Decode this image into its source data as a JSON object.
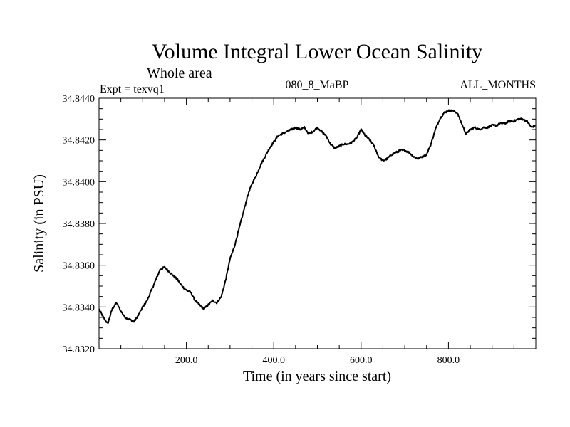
{
  "chart_data": {
    "type": "line",
    "title": "Volume Integral Lower Ocean Salinity",
    "subtitle": "Whole area",
    "header_left": "Expt = texvq1",
    "header_center": "080_8_MaBP",
    "header_right": "ALL_MONTHS",
    "xlabel": "Time (in years since start)",
    "ylabel": "Salinity (in PSU)",
    "xlim": [
      0,
      1000
    ],
    "ylim": [
      34.832,
      34.844
    ],
    "xticks": [
      {
        "value": 200,
        "label": "200.0"
      },
      {
        "value": 400,
        "label": "400.0"
      },
      {
        "value": 600,
        "label": "600.0"
      },
      {
        "value": 800,
        "label": "800.0"
      }
    ],
    "yticks": [
      {
        "value": 34.832,
        "label": "34.8320"
      },
      {
        "value": 34.834,
        "label": "34.8340"
      },
      {
        "value": 34.836,
        "label": "34.8360"
      },
      {
        "value": 34.838,
        "label": "34.8380"
      },
      {
        "value": 34.84,
        "label": "34.8400"
      },
      {
        "value": 34.842,
        "label": "34.8420"
      },
      {
        "value": 34.844,
        "label": "34.8440"
      }
    ],
    "series": [
      {
        "name": "Salinity",
        "x": [
          0,
          10,
          20,
          30,
          40,
          50,
          60,
          70,
          80,
          90,
          100,
          110,
          120,
          130,
          140,
          150,
          160,
          170,
          180,
          190,
          200,
          210,
          220,
          230,
          240,
          250,
          260,
          270,
          280,
          290,
          300,
          310,
          320,
          330,
          340,
          350,
          360,
          370,
          380,
          390,
          400,
          410,
          420,
          430,
          440,
          450,
          460,
          470,
          480,
          490,
          500,
          510,
          520,
          530,
          540,
          550,
          560,
          570,
          580,
          590,
          600,
          610,
          620,
          630,
          640,
          650,
          660,
          670,
          680,
          690,
          700,
          710,
          720,
          730,
          740,
          750,
          760,
          770,
          780,
          790,
          800,
          810,
          820,
          830,
          840,
          850,
          860,
          870,
          880,
          890,
          900,
          910,
          920,
          930,
          940,
          950,
          960,
          970,
          980,
          990,
          998
        ],
        "y": [
          34.8339,
          34.8335,
          34.8332,
          34.8339,
          34.8342,
          34.8338,
          34.8335,
          34.8334,
          34.8333,
          34.8336,
          34.834,
          34.8343,
          34.8348,
          34.8353,
          34.8358,
          34.8359,
          34.8357,
          34.8355,
          34.8353,
          34.835,
          34.8348,
          34.8347,
          34.8343,
          34.8341,
          34.8339,
          34.8341,
          34.8343,
          34.8342,
          34.8345,
          34.8353,
          34.8363,
          34.8369,
          34.8377,
          34.8385,
          34.8393,
          34.8399,
          34.8403,
          34.8408,
          34.8412,
          34.8416,
          34.8419,
          34.8422,
          34.8423,
          34.8424,
          34.8425,
          34.8426,
          34.8425,
          34.8426,
          34.8423,
          34.8424,
          34.8426,
          34.8424,
          34.8422,
          34.8418,
          34.8416,
          34.8417,
          34.8418,
          34.8418,
          34.8419,
          34.8421,
          34.8425,
          34.8422,
          34.842,
          34.8417,
          34.8412,
          34.841,
          34.8411,
          34.8413,
          34.8414,
          34.8415,
          34.8415,
          34.8414,
          34.8412,
          34.8411,
          34.8412,
          34.8413,
          34.8418,
          34.8425,
          34.843,
          34.8433,
          34.8434,
          34.8434,
          34.8433,
          34.8428,
          34.8423,
          34.8425,
          34.8426,
          34.8425,
          34.8426,
          34.8426,
          34.8427,
          34.8427,
          34.8428,
          34.8428,
          34.8429,
          34.8429,
          34.843,
          34.843,
          34.8429,
          34.8426,
          34.8427
        ]
      }
    ]
  }
}
